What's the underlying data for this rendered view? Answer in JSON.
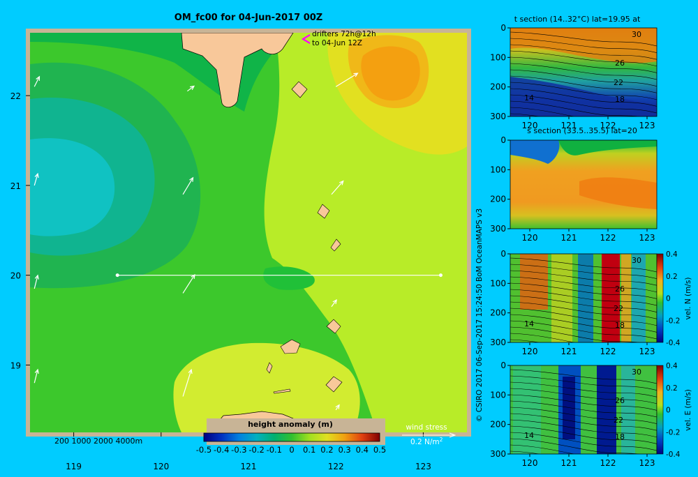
{
  "colors": {
    "page_bg": "#00ccff",
    "land": "#f8c89a",
    "map_border": "#c8b496",
    "contour": "#000000",
    "arrow": "#ffffff",
    "drifter": "#ff00ff"
  },
  "chart_data": [
    {
      "type": "heatmap",
      "title": "OM_fc00 for 04-Jun-2017 00Z",
      "x_ticks": [
        "119",
        "120",
        "121",
        "122",
        "123"
      ],
      "y_ticks": [
        "22",
        "21",
        "20",
        "19"
      ],
      "xlim": [
        118.5,
        123.5
      ],
      "ylim": [
        18.25,
        22.7
      ],
      "annotations": {
        "drifters": "drifters 72h@12h",
        "drifters_to": "to 04-Jun 12Z",
        "depth_legend": "200  1000  2000  4000m",
        "wind_stress": "wind stress",
        "wind_scale": "0.2 N/m",
        "wind_scale_sup": "2"
      },
      "colorbar": {
        "label": "height anomaly  (m)",
        "ticks": [
          "-0.5",
          "-0.4",
          "-0.3",
          "-0.2",
          "-0.1",
          "0",
          "0.1",
          "0.2",
          "0.3",
          "0.4",
          "0.5"
        ],
        "range": [
          -0.5,
          0.5
        ]
      },
      "section_line": {
        "lat": 20,
        "lon_from": 119.5,
        "lon_to": 123.2
      },
      "wind_arrows": [
        {
          "lon": 118.55,
          "lat": 22.1,
          "u": 0.3,
          "v": 0.6
        },
        {
          "lon": 120.3,
          "lat": 22.05,
          "u": 0.4,
          "v": 0.3
        },
        {
          "lon": 122.0,
          "lat": 22.1,
          "u": 1.3,
          "v": 0.8
        },
        {
          "lon": 118.55,
          "lat": 21.0,
          "u": 0.2,
          "v": 0.7
        },
        {
          "lon": 120.25,
          "lat": 20.9,
          "u": 0.6,
          "v": 1.0
        },
        {
          "lon": 121.95,
          "lat": 20.9,
          "u": 0.7,
          "v": 0.8
        },
        {
          "lon": 118.55,
          "lat": 19.85,
          "u": 0.2,
          "v": 0.8
        },
        {
          "lon": 120.25,
          "lat": 19.8,
          "u": 0.7,
          "v": 1.1
        },
        {
          "lon": 121.95,
          "lat": 19.65,
          "u": 0.3,
          "v": 0.4
        },
        {
          "lon": 118.55,
          "lat": 18.8,
          "u": 0.2,
          "v": 0.8
        },
        {
          "lon": 120.25,
          "lat": 18.65,
          "u": 0.5,
          "v": 1.6
        },
        {
          "lon": 122.0,
          "lat": 18.5,
          "u": 0.2,
          "v": 0.3
        }
      ],
      "field_components": [
        {
          "name": "background",
          "level": 0.05
        },
        {
          "name": "western-low",
          "level": -0.15
        },
        {
          "name": "northeast-high",
          "level": 0.35
        },
        {
          "name": "eastern-band",
          "level": 0.15
        },
        {
          "name": "southern-high",
          "level": 0.15
        }
      ]
    },
    {
      "type": "heatmap",
      "title": "t section (14..32°C) lat=19.95 at",
      "x_ticks": [
        "120",
        "121",
        "122",
        "123"
      ],
      "y_ticks": [
        "0",
        "100",
        "200",
        "300"
      ],
      "xlim": [
        119.5,
        123.25
      ],
      "ylim": [
        300,
        0
      ],
      "contour_labels": [
        "30",
        "26",
        "22",
        "18",
        "14"
      ]
    },
    {
      "type": "heatmap",
      "title": "s section (33.5..35.5) lat=20",
      "x_ticks": [
        "120",
        "121",
        "122",
        "123"
      ],
      "y_ticks": [
        "0",
        "100",
        "200",
        "300"
      ],
      "xlim": [
        119.5,
        123.25
      ],
      "ylim": [
        300,
        0
      ]
    },
    {
      "type": "heatmap",
      "title": "",
      "ylabel_right": "vel. N (m/s)",
      "x_ticks": [
        "120",
        "121",
        "122",
        "123"
      ],
      "y_ticks": [
        "0",
        "100",
        "200",
        "300"
      ],
      "xlim": [
        119.5,
        123.25
      ],
      "ylim": [
        300,
        0
      ],
      "contour_labels": [
        "30",
        "26",
        "22",
        "18",
        "14"
      ],
      "colorbar_ticks": [
        "0.4",
        "0.2",
        "0",
        "-0.2",
        "-0.4"
      ],
      "colorbar_range": [
        -0.4,
        0.4
      ]
    },
    {
      "type": "heatmap",
      "title": "",
      "ylabel_right": "vel. E (m/s)",
      "x_ticks": [
        "120",
        "121",
        "122",
        "123"
      ],
      "y_ticks": [
        "0",
        "100",
        "200",
        "300"
      ],
      "xlim": [
        119.5,
        123.25
      ],
      "ylim": [
        300,
        0
      ],
      "contour_labels": [
        "30",
        "26",
        "22",
        "18",
        "14"
      ],
      "colorbar_ticks": [
        "0.4",
        "0.2",
        "0",
        "-0.2",
        "-0.4"
      ],
      "colorbar_range": [
        -0.4,
        0.4
      ]
    }
  ],
  "credit": "© CSIRO 2017    06-Sep-2017 15:24:50 BoM OceanMAPS v3"
}
